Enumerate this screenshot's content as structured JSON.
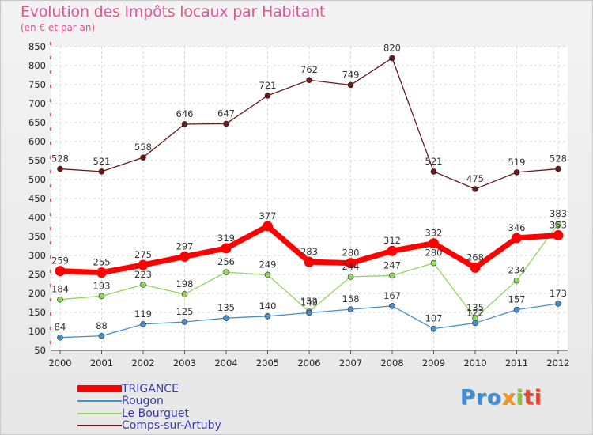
{
  "title": "Evolution des Impôts locaux par Habitant",
  "subtitle": "(en € et par an)",
  "brand": {
    "p": "Pro",
    "x": "x",
    "i": "i",
    "ti": "ti"
  },
  "colors": {
    "trigance": "#ff0000",
    "rougon": "#4a8fc8",
    "le_bourguet": "#8fd65a",
    "comps": "#6b1a1a",
    "axis": "#b3001b",
    "grid": "#d7d7d7"
  },
  "chart_data": {
    "type": "line",
    "title": "Evolution des Impôts locaux par Habitant",
    "subtitle": "(en € et par an)",
    "x": [
      "2000",
      "2001",
      "2002",
      "2003",
      "2004",
      "2005",
      "2006",
      "2007",
      "2008",
      "2009",
      "2010",
      "2011",
      "2012"
    ],
    "yticks": [
      "50",
      "100",
      "150",
      "200",
      "250",
      "300",
      "350",
      "400",
      "450",
      "500",
      "550",
      "600",
      "650",
      "700",
      "750",
      "800",
      "850"
    ],
    "ylim": [
      50,
      850
    ],
    "grid": true,
    "series": [
      {
        "name": "TRIGANCE",
        "values": [
          259,
          255,
          275,
          297,
          319,
          377,
          283,
          280,
          312,
          332,
          268,
          346,
          353
        ],
        "labels": [
          "259",
          "255",
          "275",
          "297",
          "319",
          "377",
          "283",
          "280",
          "312",
          "332",
          "268",
          "346",
          "353"
        ]
      },
      {
        "name": "Rougon",
        "values": [
          84,
          88,
          119,
          125,
          135,
          140,
          149,
          158,
          167,
          107,
          122,
          157,
          173
        ],
        "labels": [
          "84",
          "88",
          "119",
          "125",
          "135",
          "140",
          "149",
          "158",
          "167",
          "107",
          "122",
          "157",
          "173"
        ]
      },
      {
        "name": "Le Bourguet",
        "values": [
          184,
          193,
          223,
          198,
          256,
          249,
          152,
          244,
          247,
          280,
          135,
          234,
          383
        ],
        "labels": [
          "184",
          "193",
          "223",
          "198",
          "256",
          "249",
          "152",
          "244",
          "247",
          "280",
          "135",
          "234",
          "383"
        ]
      },
      {
        "name": "Comps-sur-Artuby",
        "values": [
          528,
          521,
          558,
          646,
          647,
          721,
          762,
          749,
          820,
          521,
          475,
          519,
          528
        ],
        "labels": [
          "528",
          "521",
          "558",
          "646",
          "647",
          "721",
          "762",
          "749",
          "820",
          "521",
          "475",
          "519",
          "528"
        ]
      }
    ]
  }
}
